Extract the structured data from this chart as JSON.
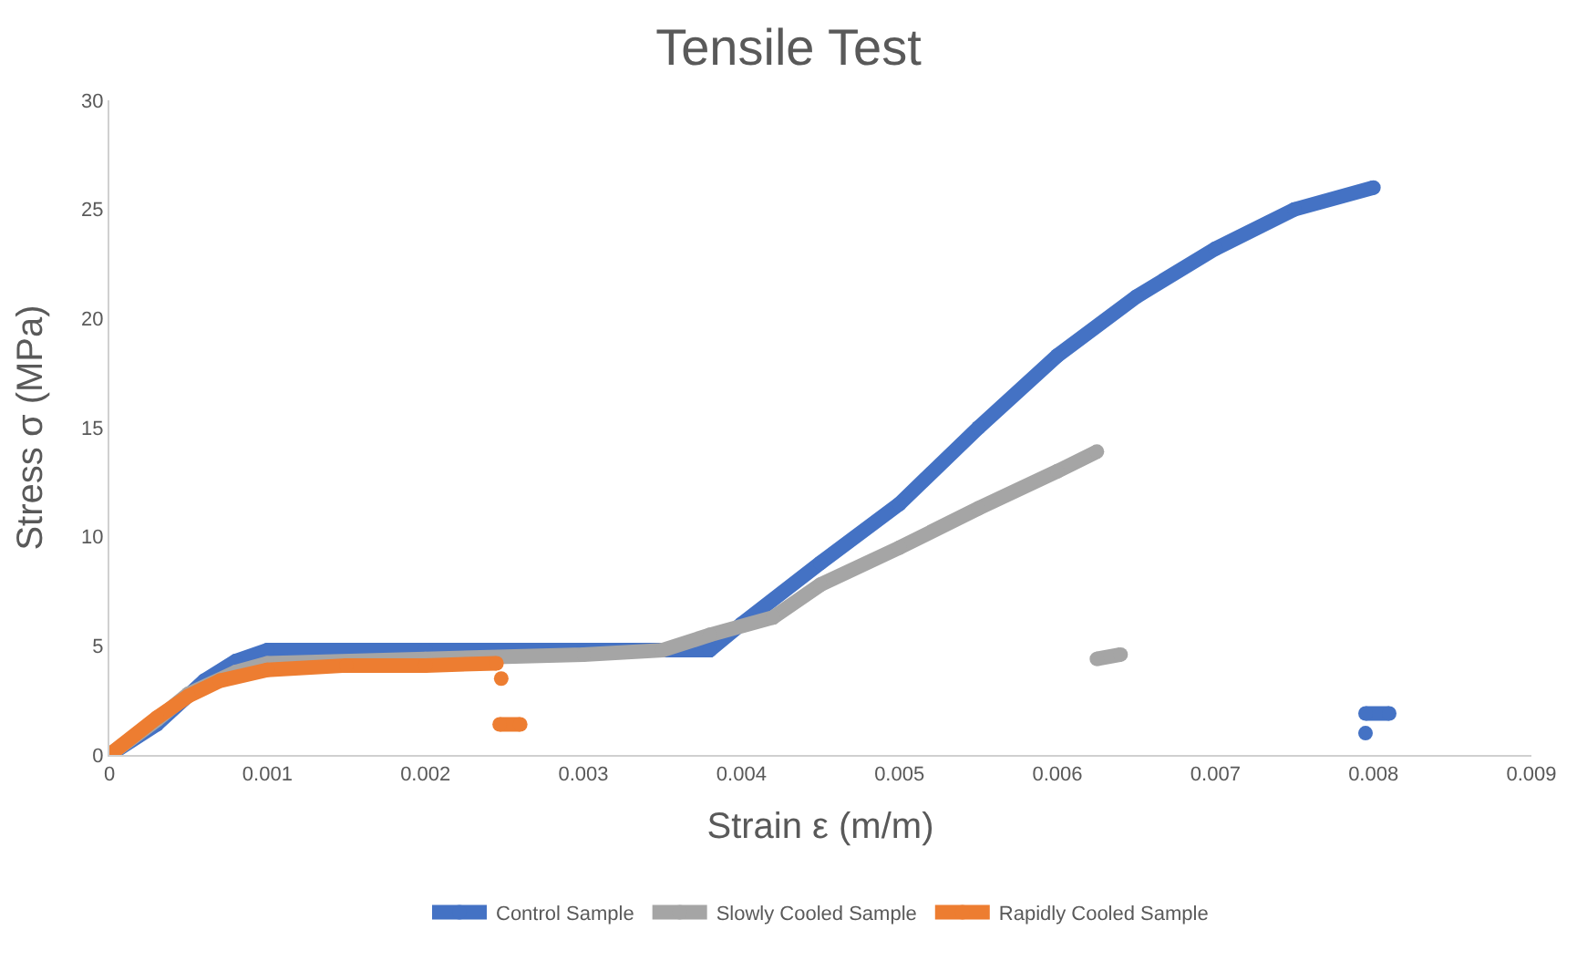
{
  "chart_data": {
    "type": "line",
    "title": "Tensile Test",
    "xlabel": "Strain ε (m/m)",
    "ylabel": "Stress σ (MPa)",
    "xlim": [
      0,
      0.009
    ],
    "xticks": [
      {
        "value": 0,
        "label": "0"
      },
      0.001,
      0.002,
      0.003,
      0.004,
      0.005,
      0.006,
      0.007,
      0.008,
      0.009
    ],
    "ylim": [
      0,
      30
    ],
    "yticks": [
      0,
      5,
      10,
      15,
      20,
      25,
      30
    ],
    "legend": "bottom",
    "marker": "circle",
    "line_style": "solid",
    "series": [
      {
        "name": "Control Sample",
        "color": "#4472c4",
        "x": [
          0,
          0.0003,
          0.0006,
          0.0008,
          0.001,
          0.002,
          0.003,
          0.0038,
          0.004,
          0.0045,
          0.005,
          0.0055,
          0.006,
          0.0065,
          0.007,
          0.0075,
          0.008,
          null,
          0.00795,
          0.0081,
          null,
          0.00795
        ],
        "values": [
          0,
          1.4,
          3.4,
          4.3,
          4.8,
          4.8,
          4.8,
          4.8,
          6,
          8.8,
          11.5,
          15,
          18.3,
          21,
          23.2,
          25,
          26,
          null,
          1.9,
          1.9,
          null,
          1.0
        ]
      },
      {
        "name": "Slowly Cooled Sample",
        "color": "#a5a5a5",
        "x": [
          0,
          0.0003,
          0.0005,
          0.0008,
          0.001,
          0.002,
          0.003,
          0.0035,
          0.0038,
          0.0042,
          0.0045,
          0.005,
          0.0055,
          0.006,
          0.00625,
          null,
          0.00625,
          0.0064
        ],
        "values": [
          0,
          1.6,
          2.8,
          3.8,
          4.2,
          4.4,
          4.6,
          4.8,
          5.5,
          6.3,
          7.8,
          9.5,
          11.3,
          13,
          13.9,
          null,
          4.4,
          4.6
        ]
      },
      {
        "name": "Rapidly Cooled Sample",
        "color": "#ed7d31",
        "x": [
          0,
          0.0003,
          0.0005,
          0.0007,
          0.001,
          0.0015,
          0.002,
          0.00245,
          null,
          0.00248,
          null,
          0.00247,
          0.0026
        ],
        "values": [
          0,
          1.7,
          2.7,
          3.4,
          3.9,
          4.1,
          4.1,
          4.2,
          null,
          3.5,
          null,
          1.4,
          1.4
        ]
      }
    ]
  }
}
